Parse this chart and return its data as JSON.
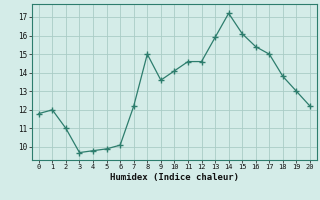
{
  "x": [
    0,
    1,
    2,
    3,
    4,
    5,
    6,
    7,
    8,
    9,
    10,
    11,
    12,
    13,
    14,
    15,
    16,
    17,
    18,
    19,
    20
  ],
  "y": [
    11.8,
    12.0,
    11.0,
    9.7,
    9.8,
    9.9,
    10.1,
    12.2,
    15.0,
    13.6,
    14.1,
    14.6,
    14.6,
    15.9,
    17.2,
    16.1,
    15.4,
    15.0,
    13.8,
    13.0,
    12.2
  ],
  "line_color": "#2d7d6d",
  "marker_color": "#2d7d6d",
  "bg_color": "#d4ece8",
  "grid_color": "#aaccc6",
  "xlabel": "Humidex (Indice chaleur)",
  "ylabel_ticks": [
    10,
    11,
    12,
    13,
    14,
    15,
    16,
    17
  ],
  "xlim": [
    -0.5,
    20.5
  ],
  "ylim": [
    9.3,
    17.7
  ]
}
